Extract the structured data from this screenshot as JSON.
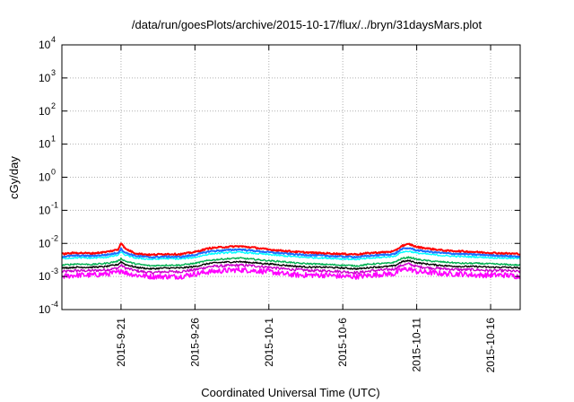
{
  "chart_data": {
    "type": "line",
    "title": "/data/run/goesPlots/archive/2015-10-17/flux/../bryn/31daysMars.plot",
    "xlabel": "Coordinated Universal Time (UTC)",
    "ylabel": "cGy/day",
    "yscale": "log",
    "ylim_exponents": [
      -4,
      4
    ],
    "y_tick_labels": [
      {
        "exp": -4,
        "base": "10",
        "power": "-4"
      },
      {
        "exp": -3,
        "base": "10",
        "power": "-3"
      },
      {
        "exp": -2,
        "base": "10",
        "power": "-2"
      },
      {
        "exp": -1,
        "base": "10",
        "power": "-1"
      },
      {
        "exp": 0,
        "base": "10",
        "power": "0"
      },
      {
        "exp": 1,
        "base": "10",
        "power": "1"
      },
      {
        "exp": 2,
        "base": "10",
        "power": "2"
      },
      {
        "exp": 3,
        "base": "10",
        "power": "3"
      },
      {
        "exp": 4,
        "base": "10",
        "power": "4"
      }
    ],
    "x_tick_days": [
      4,
      9,
      14,
      19,
      24,
      29
    ],
    "x_tick_labels": [
      "2015-9-21",
      "2015-9-26",
      "2015-10-1",
      "2015-10-6",
      "2015-10-11",
      "2015-10-16"
    ],
    "xlim_days": [
      0,
      31
    ],
    "grid": true,
    "legend": "none",
    "series": [
      {
        "color": "#ff0000",
        "x": [
          0,
          1,
          2,
          3,
          3.8,
          4,
          4.3,
          5,
          6,
          7,
          8,
          9,
          10,
          11,
          12,
          13,
          14,
          15,
          16,
          17,
          18,
          19,
          20,
          21,
          22,
          22.5,
          23,
          23.5,
          24,
          25,
          26,
          27,
          28,
          29,
          30,
          31
        ],
        "y": [
          0.0048,
          0.0052,
          0.005,
          0.0055,
          0.0065,
          0.0105,
          0.0068,
          0.005,
          0.0045,
          0.0048,
          0.0047,
          0.0055,
          0.0072,
          0.0078,
          0.0082,
          0.0075,
          0.0065,
          0.006,
          0.0055,
          0.0052,
          0.005,
          0.0048,
          0.0047,
          0.0052,
          0.0055,
          0.0058,
          0.0085,
          0.0095,
          0.0078,
          0.0068,
          0.006,
          0.0058,
          0.0055,
          0.0052,
          0.005,
          0.0048
        ]
      },
      {
        "color": "#1e6fff",
        "x": [
          0,
          1,
          2,
          3,
          3.8,
          4,
          4.3,
          5,
          6,
          7,
          8,
          9,
          10,
          11,
          12,
          13,
          14,
          15,
          16,
          17,
          18,
          19,
          20,
          21,
          22,
          22.5,
          23,
          23.5,
          24,
          25,
          26,
          27,
          28,
          29,
          30,
          31
        ],
        "y": [
          0.004,
          0.0043,
          0.0042,
          0.0045,
          0.0052,
          0.0068,
          0.0052,
          0.0042,
          0.0038,
          0.004,
          0.0039,
          0.0045,
          0.0058,
          0.0062,
          0.0066,
          0.006,
          0.0054,
          0.005,
          0.0046,
          0.0044,
          0.0042,
          0.004,
          0.0039,
          0.0043,
          0.0046,
          0.0048,
          0.0068,
          0.0072,
          0.0062,
          0.0055,
          0.005,
          0.0048,
          0.0046,
          0.0044,
          0.0042,
          0.004
        ]
      },
      {
        "color": "#00ffff",
        "x": [
          0,
          1,
          2,
          3,
          3.8,
          4,
          4.3,
          5,
          6,
          7,
          8,
          9,
          10,
          11,
          12,
          13,
          14,
          15,
          16,
          17,
          18,
          19,
          20,
          21,
          22,
          22.5,
          23,
          23.5,
          24,
          25,
          26,
          27,
          28,
          29,
          30,
          31
        ],
        "y": [
          0.0035,
          0.0037,
          0.0036,
          0.0038,
          0.0044,
          0.0055,
          0.0044,
          0.0036,
          0.0033,
          0.0035,
          0.0034,
          0.0038,
          0.0048,
          0.0052,
          0.0054,
          0.005,
          0.0046,
          0.0042,
          0.0039,
          0.0037,
          0.0036,
          0.0034,
          0.0033,
          0.0036,
          0.0039,
          0.0041,
          0.0055,
          0.0058,
          0.0051,
          0.0046,
          0.0042,
          0.004,
          0.0039,
          0.0037,
          0.0036,
          0.0035
        ]
      },
      {
        "color": "#000000",
        "x": [
          0,
          1,
          2,
          3,
          3.8,
          4,
          4.3,
          5,
          6,
          7,
          8,
          9,
          10,
          11,
          12,
          13,
          14,
          15,
          16,
          17,
          18,
          19,
          20,
          21,
          22,
          22.5,
          23,
          23.5,
          24,
          25,
          26,
          27,
          28,
          29,
          30,
          31
        ],
        "y": [
          0.0018,
          0.0019,
          0.0019,
          0.002,
          0.0023,
          0.0028,
          0.0023,
          0.0019,
          0.0017,
          0.0018,
          0.0018,
          0.002,
          0.0025,
          0.0027,
          0.0028,
          0.0026,
          0.0024,
          0.0022,
          0.002,
          0.0019,
          0.0019,
          0.0018,
          0.0017,
          0.0019,
          0.002,
          0.0021,
          0.0028,
          0.003,
          0.0026,
          0.0023,
          0.0021,
          0.002,
          0.002,
          0.0019,
          0.0019,
          0.0018
        ]
      },
      {
        "color": "#00b050",
        "x": [
          0,
          1,
          2,
          3,
          3.8,
          4,
          4.3,
          5,
          6,
          7,
          8,
          9,
          10,
          11,
          12,
          13,
          14,
          15,
          16,
          17,
          18,
          19,
          20,
          21,
          22,
          22.5,
          23,
          23.5,
          24,
          25,
          26,
          27,
          28,
          29,
          30,
          31
        ],
        "y": [
          0.0022,
          0.0024,
          0.0023,
          0.0025,
          0.0029,
          0.0035,
          0.0029,
          0.0024,
          0.0021,
          0.0022,
          0.0022,
          0.0025,
          0.0031,
          0.0034,
          0.0036,
          0.0033,
          0.003,
          0.0028,
          0.0025,
          0.0024,
          0.0023,
          0.0022,
          0.0021,
          0.0024,
          0.0025,
          0.0027,
          0.0035,
          0.0038,
          0.0033,
          0.0029,
          0.0027,
          0.0025,
          0.0025,
          0.0024,
          0.0023,
          0.0022
        ]
      },
      {
        "color": "#cc00cc",
        "x": [
          0,
          1,
          2,
          3,
          3.8,
          4,
          4.3,
          5,
          6,
          7,
          8,
          9,
          10,
          11,
          12,
          13,
          14,
          15,
          16,
          17,
          18,
          19,
          20,
          21,
          22,
          22.5,
          23,
          23.5,
          24,
          25,
          26,
          27,
          28,
          29,
          30,
          31
        ],
        "y": [
          0.0014,
          0.0015,
          0.0015,
          0.0016,
          0.0018,
          0.0022,
          0.0018,
          0.0015,
          0.0013,
          0.0014,
          0.0014,
          0.0016,
          0.002,
          0.0021,
          0.0022,
          0.0021,
          0.0019,
          0.0017,
          0.0016,
          0.0015,
          0.0015,
          0.0014,
          0.0013,
          0.0015,
          0.0016,
          0.0017,
          0.0022,
          0.0024,
          0.002,
          0.0018,
          0.0017,
          0.0016,
          0.0016,
          0.0015,
          0.0015,
          0.0014
        ]
      },
      {
        "color": "#ff00ff",
        "x": [
          0,
          1,
          2,
          3,
          3.8,
          4,
          4.3,
          5,
          6,
          7,
          8,
          9,
          10,
          11,
          12,
          13,
          14,
          15,
          16,
          17,
          18,
          19,
          20,
          21,
          22,
          22.5,
          23,
          23.5,
          24,
          25,
          26,
          27,
          28,
          29,
          30,
          31
        ],
        "y": [
          0.001,
          0.0011,
          0.0011,
          0.0012,
          0.0013,
          0.0016,
          0.0013,
          0.0011,
          0.001,
          0.001,
          0.001,
          0.0012,
          0.0014,
          0.0015,
          0.0016,
          0.0015,
          0.0014,
          0.0012,
          0.0011,
          0.0011,
          0.0011,
          0.001,
          0.001,
          0.0011,
          0.0012,
          0.0012,
          0.0016,
          0.0017,
          0.0014,
          0.0013,
          0.0012,
          0.0012,
          0.0011,
          0.0011,
          0.0011,
          0.001
        ]
      }
    ]
  }
}
